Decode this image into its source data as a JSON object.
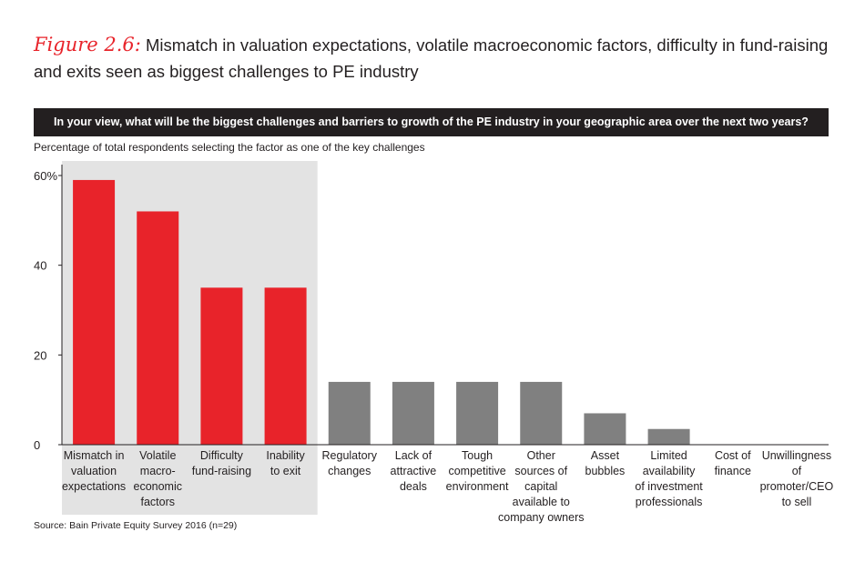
{
  "header": {
    "figure_label": "Figure 2.6:",
    "title": "Mismatch in valuation expectations, volatile macroeconomic factors, difficulty in fund-raising and exits seen as biggest challenges to PE industry"
  },
  "question": "In your view, what will be the biggest challenges and barriers to growth of the PE industry in your geographic area over the next two years?",
  "subtitle": "Percentage of total respondents selecting the factor as one of the key challenges",
  "source": "Source: Bain Private Equity Survey 2016 (n=29)",
  "colors": {
    "highlight": "#e8232a",
    "other": "#808080",
    "shade": "#e3e3e3",
    "question_bar": "#231f20"
  },
  "chart_data": {
    "type": "bar",
    "title": "Percentage of total respondents selecting the factor as one of the key challenges",
    "categories": [
      [
        "Mismatch in",
        "valuation",
        "expectations"
      ],
      [
        "Volatile",
        "macro-",
        "economic",
        "factors"
      ],
      [
        "Difficulty",
        "fund-raising"
      ],
      [
        "Inability",
        "to exit"
      ],
      [
        "Regulatory",
        "changes"
      ],
      [
        "Lack of",
        "attractive",
        "deals"
      ],
      [
        "Tough",
        "competitive",
        "environment"
      ],
      [
        "Other",
        "sources of",
        "capital",
        "available to",
        "company owners"
      ],
      [
        "Asset",
        "bubbles"
      ],
      [
        "Limited",
        "availability",
        "of investment",
        "professionals"
      ],
      [
        "Cost of",
        "finance"
      ],
      [
        "Unwillingness",
        "of",
        "promoter/CEO",
        "to sell"
      ]
    ],
    "values": [
      59,
      52,
      35,
      35,
      14,
      14,
      14,
      14,
      7,
      3.5,
      0,
      0
    ],
    "highlighted": [
      true,
      true,
      true,
      true,
      false,
      false,
      false,
      false,
      false,
      false,
      false,
      false
    ],
    "yticks": [
      {
        "value": 0,
        "label": "0"
      },
      {
        "value": 20,
        "label": "20"
      },
      {
        "value": 40,
        "label": "40"
      },
      {
        "value": 60,
        "label": "60%"
      }
    ],
    "ylim": [
      0,
      60
    ],
    "xlabel": "",
    "ylabel": ""
  }
}
